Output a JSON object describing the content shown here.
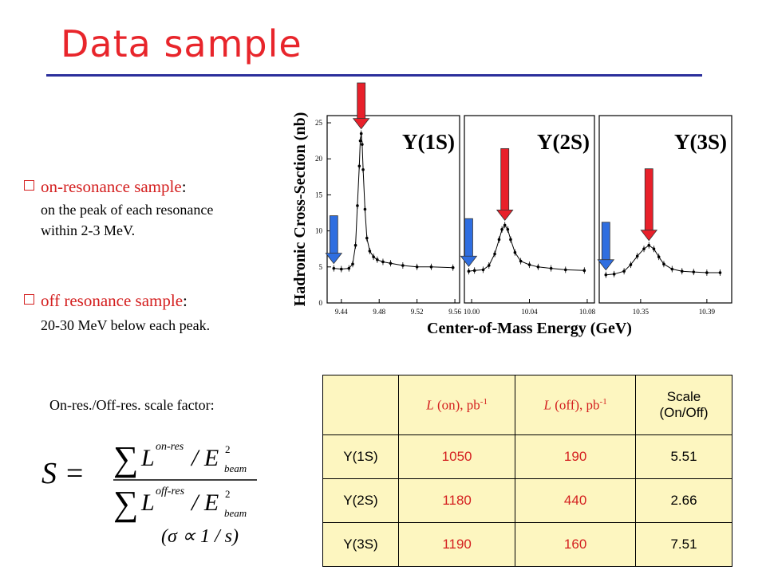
{
  "slide": {
    "title": "Data sample",
    "bullets": [
      {
        "head": "on-resonance sample",
        "colon": ":",
        "lines": [
          "on the peak of each resonance",
          "within 2-3 MeV."
        ]
      },
      {
        "head": "off resonance sample",
        "colon": ":",
        "lines": [
          "20-30 MeV below each peak."
        ]
      }
    ],
    "scale_label": "On-res./Off-res. scale factor:",
    "formula": {
      "lhs": "S =",
      "num_sup": "on-res",
      "den_sup": "off-res",
      "e_sub": "beam",
      "e_sup": "2",
      "proportional": "(σ ∝ 1 / s)"
    }
  },
  "chart_data": {
    "type": "scatter",
    "ylabel": "Hadronic Cross-Section (nb)",
    "xlabel": "Center-of-Mass Energy (GeV)",
    "yticks": [
      "0",
      "5",
      "10",
      "15",
      "20",
      "25"
    ],
    "ylim": [
      0,
      26
    ],
    "arrow_colors": {
      "on": "#e8202a",
      "off": "#2f6ee0"
    },
    "panels": [
      {
        "label": "Υ(1S)",
        "xlim": [
          9.425,
          9.565
        ],
        "xticks": [
          "9.44",
          "9.48",
          "9.52",
          "9.56"
        ],
        "xtick_values": [
          9.44,
          9.48,
          9.52,
          9.56
        ],
        "on_arrow_x": 9.461,
        "off_arrow_x": 9.432,
        "points": [
          [
            9.432,
            4.8
          ],
          [
            9.44,
            4.7
          ],
          [
            9.448,
            4.8
          ],
          [
            9.452,
            5.4
          ],
          [
            9.455,
            8.0
          ],
          [
            9.457,
            13.5
          ],
          [
            9.459,
            19.0
          ],
          [
            9.46,
            22.5
          ],
          [
            9.461,
            23.5
          ],
          [
            9.462,
            22.0
          ],
          [
            9.463,
            18.5
          ],
          [
            9.465,
            13.0
          ],
          [
            9.467,
            9.0
          ],
          [
            9.47,
            7.2
          ],
          [
            9.474,
            6.4
          ],
          [
            9.478,
            6.0
          ],
          [
            9.484,
            5.7
          ],
          [
            9.492,
            5.5
          ],
          [
            9.505,
            5.2
          ],
          [
            9.52,
            5.0
          ],
          [
            9.535,
            5.0
          ],
          [
            9.558,
            4.9
          ]
        ]
      },
      {
        "label": "Υ(2S)",
        "xlim": [
          9.995,
          10.085
        ],
        "xticks": [
          "10.00",
          "10.04",
          "10.08"
        ],
        "xtick_values": [
          10.0,
          10.04,
          10.08
        ],
        "on_arrow_x": 10.023,
        "off_arrow_x": 9.998,
        "points": [
          [
            9.998,
            4.4
          ],
          [
            10.002,
            4.5
          ],
          [
            10.008,
            4.6
          ],
          [
            10.012,
            5.2
          ],
          [
            10.016,
            6.8
          ],
          [
            10.019,
            8.8
          ],
          [
            10.021,
            10.2
          ],
          [
            10.023,
            10.8
          ],
          [
            10.025,
            10.2
          ],
          [
            10.027,
            8.8
          ],
          [
            10.03,
            7.0
          ],
          [
            10.034,
            5.8
          ],
          [
            10.04,
            5.3
          ],
          [
            10.046,
            5.0
          ],
          [
            10.055,
            4.8
          ],
          [
            10.065,
            4.6
          ],
          [
            10.078,
            4.5
          ]
        ]
      },
      {
        "label": "Υ(3S)",
        "xlim": [
          10.325,
          10.405
        ],
        "xticks": [
          "10.35",
          "10.39"
        ],
        "xtick_values": [
          10.35,
          10.39
        ],
        "on_arrow_x": 10.355,
        "off_arrow_x": 10.329,
        "points": [
          [
            10.329,
            3.9
          ],
          [
            10.334,
            4.0
          ],
          [
            10.34,
            4.4
          ],
          [
            10.344,
            5.3
          ],
          [
            10.348,
            6.5
          ],
          [
            10.352,
            7.5
          ],
          [
            10.355,
            8.0
          ],
          [
            10.358,
            7.5
          ],
          [
            10.361,
            6.4
          ],
          [
            10.364,
            5.4
          ],
          [
            10.369,
            4.7
          ],
          [
            10.375,
            4.4
          ],
          [
            10.382,
            4.3
          ],
          [
            10.39,
            4.2
          ],
          [
            10.398,
            4.2
          ]
        ]
      }
    ]
  },
  "table": {
    "headers": [
      "",
      "L (on), pb-1",
      "L (off), pb-1",
      "Scale (On/Off)"
    ],
    "header_parts": {
      "on": {
        "sym": "L",
        "text": " (on), pb",
        "sup": "-1"
      },
      "off": {
        "sym": "L",
        "text": " (off), pb",
        "sup": "-1"
      },
      "scale_line1": "Scale",
      "scale_line2": "(On/Off)"
    },
    "rows": [
      {
        "name": "Y(1S)",
        "on": "1050",
        "off": "190",
        "scale": "5.51"
      },
      {
        "name": "Y(2S)",
        "on": "1180",
        "off": "440",
        "scale": "2.66"
      },
      {
        "name": "Y(3S)",
        "on": "1190",
        "off": "160",
        "scale": "7.51"
      }
    ]
  }
}
